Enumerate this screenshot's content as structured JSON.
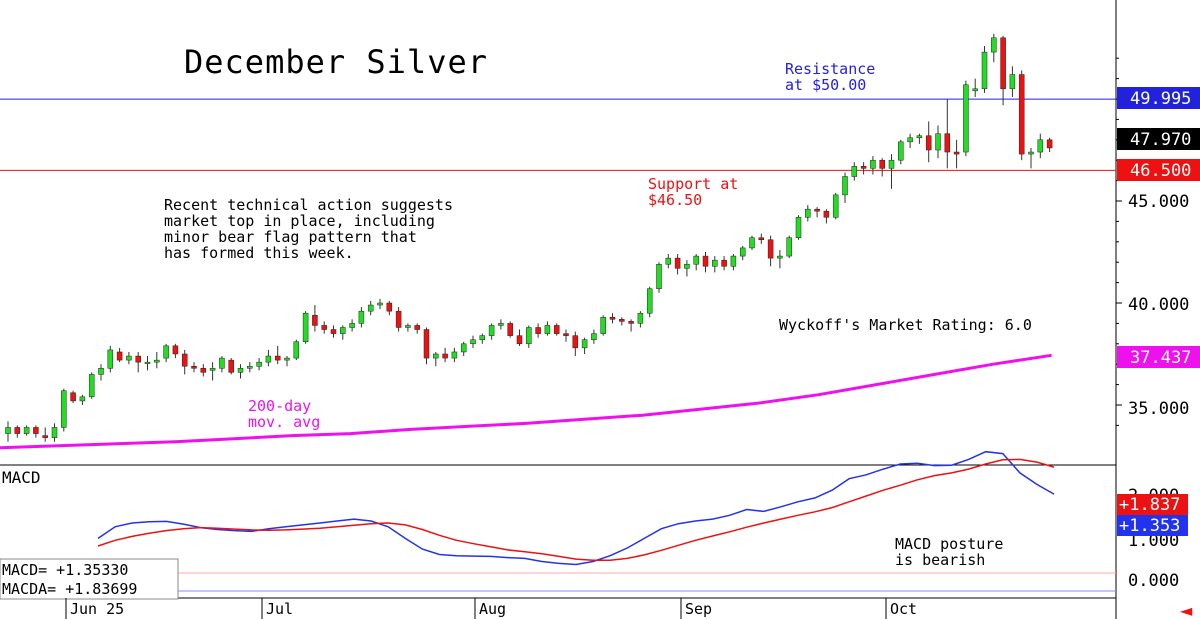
{
  "chart_data": {
    "type": "candlestick",
    "title": "December Silver",
    "price_axis": {
      "ylim": [
        31.6,
        52.8
      ],
      "ticks": [
        35.0,
        40.0,
        45.0
      ],
      "tick_labels": [
        "35.000",
        "40.000",
        "45.000"
      ]
    },
    "x_labels": [
      "Jun 25",
      "Jul",
      "Aug",
      "Sep",
      "Oct"
    ],
    "candles": [
      {
        "o": 33.6,
        "h": 34.2,
        "l": 33.2,
        "c": 33.9
      },
      {
        "o": 33.9,
        "h": 34.0,
        "l": 33.4,
        "c": 33.6
      },
      {
        "o": 33.6,
        "h": 34.0,
        "l": 33.5,
        "c": 33.9
      },
      {
        "o": 33.9,
        "h": 34.0,
        "l": 33.4,
        "c": 33.6
      },
      {
        "o": 33.5,
        "h": 33.9,
        "l": 33.2,
        "c": 33.4
      },
      {
        "o": 33.4,
        "h": 34.1,
        "l": 33.2,
        "c": 33.9
      },
      {
        "o": 33.9,
        "h": 35.8,
        "l": 33.7,
        "c": 35.7
      },
      {
        "o": 35.6,
        "h": 35.7,
        "l": 35.1,
        "c": 35.2
      },
      {
        "o": 35.2,
        "h": 35.5,
        "l": 35.0,
        "c": 35.4
      },
      {
        "o": 35.4,
        "h": 36.6,
        "l": 35.3,
        "c": 36.5
      },
      {
        "o": 36.5,
        "h": 37.0,
        "l": 36.2,
        "c": 36.8
      },
      {
        "o": 36.8,
        "h": 37.9,
        "l": 36.6,
        "c": 37.7
      },
      {
        "o": 37.6,
        "h": 37.8,
        "l": 37.1,
        "c": 37.2
      },
      {
        "o": 37.2,
        "h": 37.6,
        "l": 37.0,
        "c": 37.4
      },
      {
        "o": 37.4,
        "h": 37.6,
        "l": 36.6,
        "c": 37.1
      },
      {
        "o": 37.1,
        "h": 37.4,
        "l": 36.7,
        "c": 37.1
      },
      {
        "o": 37.1,
        "h": 37.6,
        "l": 36.8,
        "c": 37.2
      },
      {
        "o": 37.3,
        "h": 38.0,
        "l": 37.1,
        "c": 37.9
      },
      {
        "o": 37.9,
        "h": 38.0,
        "l": 37.3,
        "c": 37.5
      },
      {
        "o": 37.5,
        "h": 37.7,
        "l": 36.5,
        "c": 36.9
      },
      {
        "o": 36.9,
        "h": 37.1,
        "l": 36.6,
        "c": 36.8
      },
      {
        "o": 36.8,
        "h": 37.0,
        "l": 36.4,
        "c": 36.6
      },
      {
        "o": 36.7,
        "h": 37.1,
        "l": 36.2,
        "c": 36.8
      },
      {
        "o": 36.8,
        "h": 37.4,
        "l": 36.6,
        "c": 37.3
      },
      {
        "o": 37.2,
        "h": 37.3,
        "l": 36.5,
        "c": 36.6
      },
      {
        "o": 36.6,
        "h": 37.0,
        "l": 36.3,
        "c": 36.8
      },
      {
        "o": 36.8,
        "h": 37.1,
        "l": 36.6,
        "c": 36.9
      },
      {
        "o": 36.9,
        "h": 37.3,
        "l": 36.7,
        "c": 37.1
      },
      {
        "o": 37.1,
        "h": 37.7,
        "l": 36.9,
        "c": 37.4
      },
      {
        "o": 37.4,
        "h": 37.9,
        "l": 37.0,
        "c": 37.2
      },
      {
        "o": 37.2,
        "h": 37.4,
        "l": 36.9,
        "c": 37.3
      },
      {
        "o": 37.3,
        "h": 38.2,
        "l": 37.2,
        "c": 38.1
      },
      {
        "o": 38.1,
        "h": 39.6,
        "l": 38.0,
        "c": 39.5
      },
      {
        "o": 39.4,
        "h": 39.9,
        "l": 38.6,
        "c": 38.9
      },
      {
        "o": 38.9,
        "h": 39.1,
        "l": 38.5,
        "c": 38.7
      },
      {
        "o": 38.7,
        "h": 38.9,
        "l": 38.3,
        "c": 38.5
      },
      {
        "o": 38.5,
        "h": 38.9,
        "l": 38.2,
        "c": 38.8
      },
      {
        "o": 38.8,
        "h": 39.2,
        "l": 38.6,
        "c": 39.0
      },
      {
        "o": 39.0,
        "h": 39.8,
        "l": 38.8,
        "c": 39.6
      },
      {
        "o": 39.6,
        "h": 40.1,
        "l": 39.4,
        "c": 39.9
      },
      {
        "o": 39.9,
        "h": 40.2,
        "l": 39.7,
        "c": 40.0
      },
      {
        "o": 40.0,
        "h": 40.1,
        "l": 39.4,
        "c": 39.6
      },
      {
        "o": 39.6,
        "h": 39.8,
        "l": 38.6,
        "c": 38.8
      },
      {
        "o": 38.8,
        "h": 39.0,
        "l": 38.6,
        "c": 38.9
      },
      {
        "o": 38.9,
        "h": 39.0,
        "l": 38.5,
        "c": 38.7
      },
      {
        "o": 38.7,
        "h": 38.8,
        "l": 37.0,
        "c": 37.3
      },
      {
        "o": 37.3,
        "h": 37.6,
        "l": 36.9,
        "c": 37.5
      },
      {
        "o": 37.5,
        "h": 37.8,
        "l": 37.1,
        "c": 37.3
      },
      {
        "o": 37.3,
        "h": 37.8,
        "l": 37.1,
        "c": 37.6
      },
      {
        "o": 37.6,
        "h": 38.1,
        "l": 37.4,
        "c": 38.0
      },
      {
        "o": 38.0,
        "h": 38.4,
        "l": 37.8,
        "c": 38.2
      },
      {
        "o": 38.2,
        "h": 38.5,
        "l": 38.0,
        "c": 38.4
      },
      {
        "o": 38.4,
        "h": 39.0,
        "l": 38.2,
        "c": 38.9
      },
      {
        "o": 38.9,
        "h": 39.2,
        "l": 38.7,
        "c": 39.0
      },
      {
        "o": 39.0,
        "h": 39.1,
        "l": 38.3,
        "c": 38.4
      },
      {
        "o": 38.4,
        "h": 38.7,
        "l": 37.9,
        "c": 38.0
      },
      {
        "o": 38.0,
        "h": 38.9,
        "l": 37.8,
        "c": 38.8
      },
      {
        "o": 38.8,
        "h": 39.0,
        "l": 38.3,
        "c": 38.5
      },
      {
        "o": 38.5,
        "h": 39.1,
        "l": 38.4,
        "c": 38.9
      },
      {
        "o": 38.9,
        "h": 39.0,
        "l": 38.4,
        "c": 38.5
      },
      {
        "o": 38.5,
        "h": 38.7,
        "l": 38.1,
        "c": 38.4
      },
      {
        "o": 38.4,
        "h": 38.6,
        "l": 37.4,
        "c": 37.8
      },
      {
        "o": 37.8,
        "h": 38.3,
        "l": 37.5,
        "c": 38.2
      },
      {
        "o": 38.2,
        "h": 38.7,
        "l": 38.0,
        "c": 38.5
      },
      {
        "o": 38.5,
        "h": 39.4,
        "l": 38.4,
        "c": 39.3
      },
      {
        "o": 39.3,
        "h": 39.5,
        "l": 39.0,
        "c": 39.2
      },
      {
        "o": 39.2,
        "h": 39.3,
        "l": 38.9,
        "c": 39.1
      },
      {
        "o": 39.1,
        "h": 39.2,
        "l": 38.6,
        "c": 39.0
      },
      {
        "o": 39.0,
        "h": 39.6,
        "l": 38.8,
        "c": 39.5
      },
      {
        "o": 39.5,
        "h": 40.8,
        "l": 39.3,
        "c": 40.7
      },
      {
        "o": 40.7,
        "h": 42.0,
        "l": 40.5,
        "c": 41.9
      },
      {
        "o": 41.9,
        "h": 42.4,
        "l": 41.7,
        "c": 42.2
      },
      {
        "o": 42.2,
        "h": 42.4,
        "l": 41.4,
        "c": 41.7
      },
      {
        "o": 41.7,
        "h": 42.1,
        "l": 41.3,
        "c": 41.9
      },
      {
        "o": 41.9,
        "h": 42.4,
        "l": 41.6,
        "c": 42.3
      },
      {
        "o": 42.3,
        "h": 42.5,
        "l": 41.5,
        "c": 41.8
      },
      {
        "o": 41.8,
        "h": 42.3,
        "l": 41.5,
        "c": 42.1
      },
      {
        "o": 42.1,
        "h": 42.3,
        "l": 41.6,
        "c": 41.8
      },
      {
        "o": 41.8,
        "h": 42.4,
        "l": 41.6,
        "c": 42.3
      },
      {
        "o": 42.3,
        "h": 42.8,
        "l": 42.1,
        "c": 42.7
      },
      {
        "o": 42.7,
        "h": 43.3,
        "l": 42.6,
        "c": 43.2
      },
      {
        "o": 43.2,
        "h": 43.4,
        "l": 42.9,
        "c": 43.1
      },
      {
        "o": 43.1,
        "h": 43.3,
        "l": 41.8,
        "c": 42.2
      },
      {
        "o": 42.2,
        "h": 42.6,
        "l": 41.7,
        "c": 42.3
      },
      {
        "o": 42.3,
        "h": 43.3,
        "l": 42.2,
        "c": 43.2
      },
      {
        "o": 43.2,
        "h": 44.3,
        "l": 43.1,
        "c": 44.2
      },
      {
        "o": 44.2,
        "h": 44.8,
        "l": 44.0,
        "c": 44.6
      },
      {
        "o": 44.6,
        "h": 44.7,
        "l": 44.2,
        "c": 44.5
      },
      {
        "o": 44.5,
        "h": 44.6,
        "l": 43.9,
        "c": 44.2
      },
      {
        "o": 44.2,
        "h": 45.4,
        "l": 44.1,
        "c": 45.3
      },
      {
        "o": 45.3,
        "h": 46.4,
        "l": 44.9,
        "c": 46.2
      },
      {
        "o": 46.2,
        "h": 46.9,
        "l": 46.0,
        "c": 46.7
      },
      {
        "o": 46.7,
        "h": 46.9,
        "l": 46.3,
        "c": 46.6
      },
      {
        "o": 46.6,
        "h": 47.2,
        "l": 46.3,
        "c": 47.0
      },
      {
        "o": 47.0,
        "h": 47.1,
        "l": 46.2,
        "c": 46.6
      },
      {
        "o": 46.6,
        "h": 47.3,
        "l": 45.6,
        "c": 47.0
      },
      {
        "o": 47.0,
        "h": 48.0,
        "l": 46.8,
        "c": 47.9
      },
      {
        "o": 47.9,
        "h": 48.3,
        "l": 47.6,
        "c": 48.1
      },
      {
        "o": 48.1,
        "h": 48.3,
        "l": 47.8,
        "c": 48.2
      },
      {
        "o": 48.2,
        "h": 48.9,
        "l": 46.9,
        "c": 47.5
      },
      {
        "o": 47.5,
        "h": 48.7,
        "l": 47.1,
        "c": 48.3
      },
      {
        "o": 48.3,
        "h": 50.0,
        "l": 46.6,
        "c": 47.4
      },
      {
        "o": 47.4,
        "h": 48.0,
        "l": 46.6,
        "c": 47.3
      },
      {
        "o": 47.4,
        "h": 50.9,
        "l": 47.2,
        "c": 50.7
      },
      {
        "o": 50.4,
        "h": 51.0,
        "l": 50.1,
        "c": 50.5
      },
      {
        "o": 50.5,
        "h": 52.6,
        "l": 50.3,
        "c": 52.3
      },
      {
        "o": 52.3,
        "h": 53.2,
        "l": 51.8,
        "c": 53.0
      },
      {
        "o": 53.0,
        "h": 53.1,
        "l": 49.7,
        "c": 50.5
      },
      {
        "o": 50.5,
        "h": 51.6,
        "l": 50.1,
        "c": 51.2
      },
      {
        "o": 51.2,
        "h": 51.4,
        "l": 47.0,
        "c": 47.3
      },
      {
        "o": 47.3,
        "h": 47.6,
        "l": 46.6,
        "c": 47.4
      },
      {
        "o": 47.4,
        "h": 48.3,
        "l": 47.1,
        "c": 48.0
      },
      {
        "o": 48.0,
        "h": 48.1,
        "l": 47.4,
        "c": 47.6
      }
    ],
    "ma200": {
      "name": "200-day mov. avg",
      "values": [
        32.9,
        33.0,
        33.1,
        33.2,
        33.35,
        33.5,
        33.6,
        33.8,
        33.95,
        34.1,
        34.3,
        34.5,
        34.8,
        35.1,
        35.5,
        36.0,
        36.5,
        37.0,
        37.437
      ]
    },
    "resistance": {
      "value": 49.995,
      "label": "49.995",
      "annotation": "Resistance at $50.00",
      "color": "#2222dd"
    },
    "support": {
      "value": 46.5,
      "label": "46.500",
      "annotation": "Support at $46.50",
      "color": "#ee1111"
    },
    "last_price": {
      "value": 47.97,
      "label": "47.970"
    },
    "ma_last": {
      "value": 37.437,
      "label": "37.437",
      "color": "#ee11ee"
    },
    "macd": {
      "title": "MACD",
      "ylim": [
        -0.2,
        3.0
      ],
      "ticks": [
        0.0,
        1.0,
        2.0
      ],
      "tick_labels": [
        "0.000",
        "1.000",
        "2.000"
      ],
      "macd_line": [
        0.9,
        1.2,
        1.3,
        1.33,
        1.34,
        1.27,
        1.18,
        1.13,
        1.1,
        1.08,
        1.15,
        1.2,
        1.25,
        1.3,
        1.35,
        1.4,
        1.35,
        1.2,
        0.9,
        0.62,
        0.48,
        0.45,
        0.44,
        0.43,
        0.4,
        0.38,
        0.3,
        0.25,
        0.22,
        0.3,
        0.45,
        0.65,
        0.9,
        1.15,
        1.28,
        1.35,
        1.4,
        1.5,
        1.65,
        1.6,
        1.72,
        1.85,
        1.95,
        2.15,
        2.45,
        2.55,
        2.7,
        2.83,
        2.85,
        2.79,
        2.8,
        2.95,
        3.15,
        3.1,
        2.6,
        2.3,
        2.05
      ],
      "macd_signal": [
        0.7,
        0.85,
        0.95,
        1.03,
        1.1,
        1.15,
        1.18,
        1.16,
        1.14,
        1.12,
        1.11,
        1.12,
        1.14,
        1.16,
        1.2,
        1.24,
        1.28,
        1.3,
        1.25,
        1.13,
        0.98,
        0.85,
        0.76,
        0.68,
        0.6,
        0.55,
        0.5,
        0.43,
        0.36,
        0.33,
        0.33,
        0.38,
        0.47,
        0.59,
        0.72,
        0.85,
        0.96,
        1.07,
        1.19,
        1.3,
        1.4,
        1.5,
        1.59,
        1.7,
        1.85,
        2.0,
        2.15,
        2.28,
        2.42,
        2.53,
        2.6,
        2.7,
        2.83,
        2.94,
        2.95,
        2.88,
        2.75
      ],
      "macd_label": "+1.837",
      "signal_label": "+1.353",
      "readout_macd": "MACD=   +1.35330",
      "readout_macda": "MACDA=  +1.83699",
      "annotation": "MACD posture is bearish"
    },
    "annotations": {
      "commentary": [
        "Recent technical action suggests",
        "market top in place, including",
        "minor bear flag pattern that",
        "has formed this week."
      ],
      "rating": "Wyckoff's Market Rating: 6.0",
      "ma_label_1": "200-day",
      "ma_label_2": "mov. avg",
      "resistance_1": "Resistance",
      "resistance_2": "at $50.00",
      "support_1": "Support at",
      "support_2": "$46.50",
      "macd_note_1": "MACD posture",
      "macd_note_2": "is bearish"
    },
    "colors": {
      "up": "#22dd22",
      "down": "#ee1111",
      "wick": "#333333",
      "macd": "#2233ee",
      "signal": "#ee1111",
      "ma": "#ee11ee"
    }
  }
}
